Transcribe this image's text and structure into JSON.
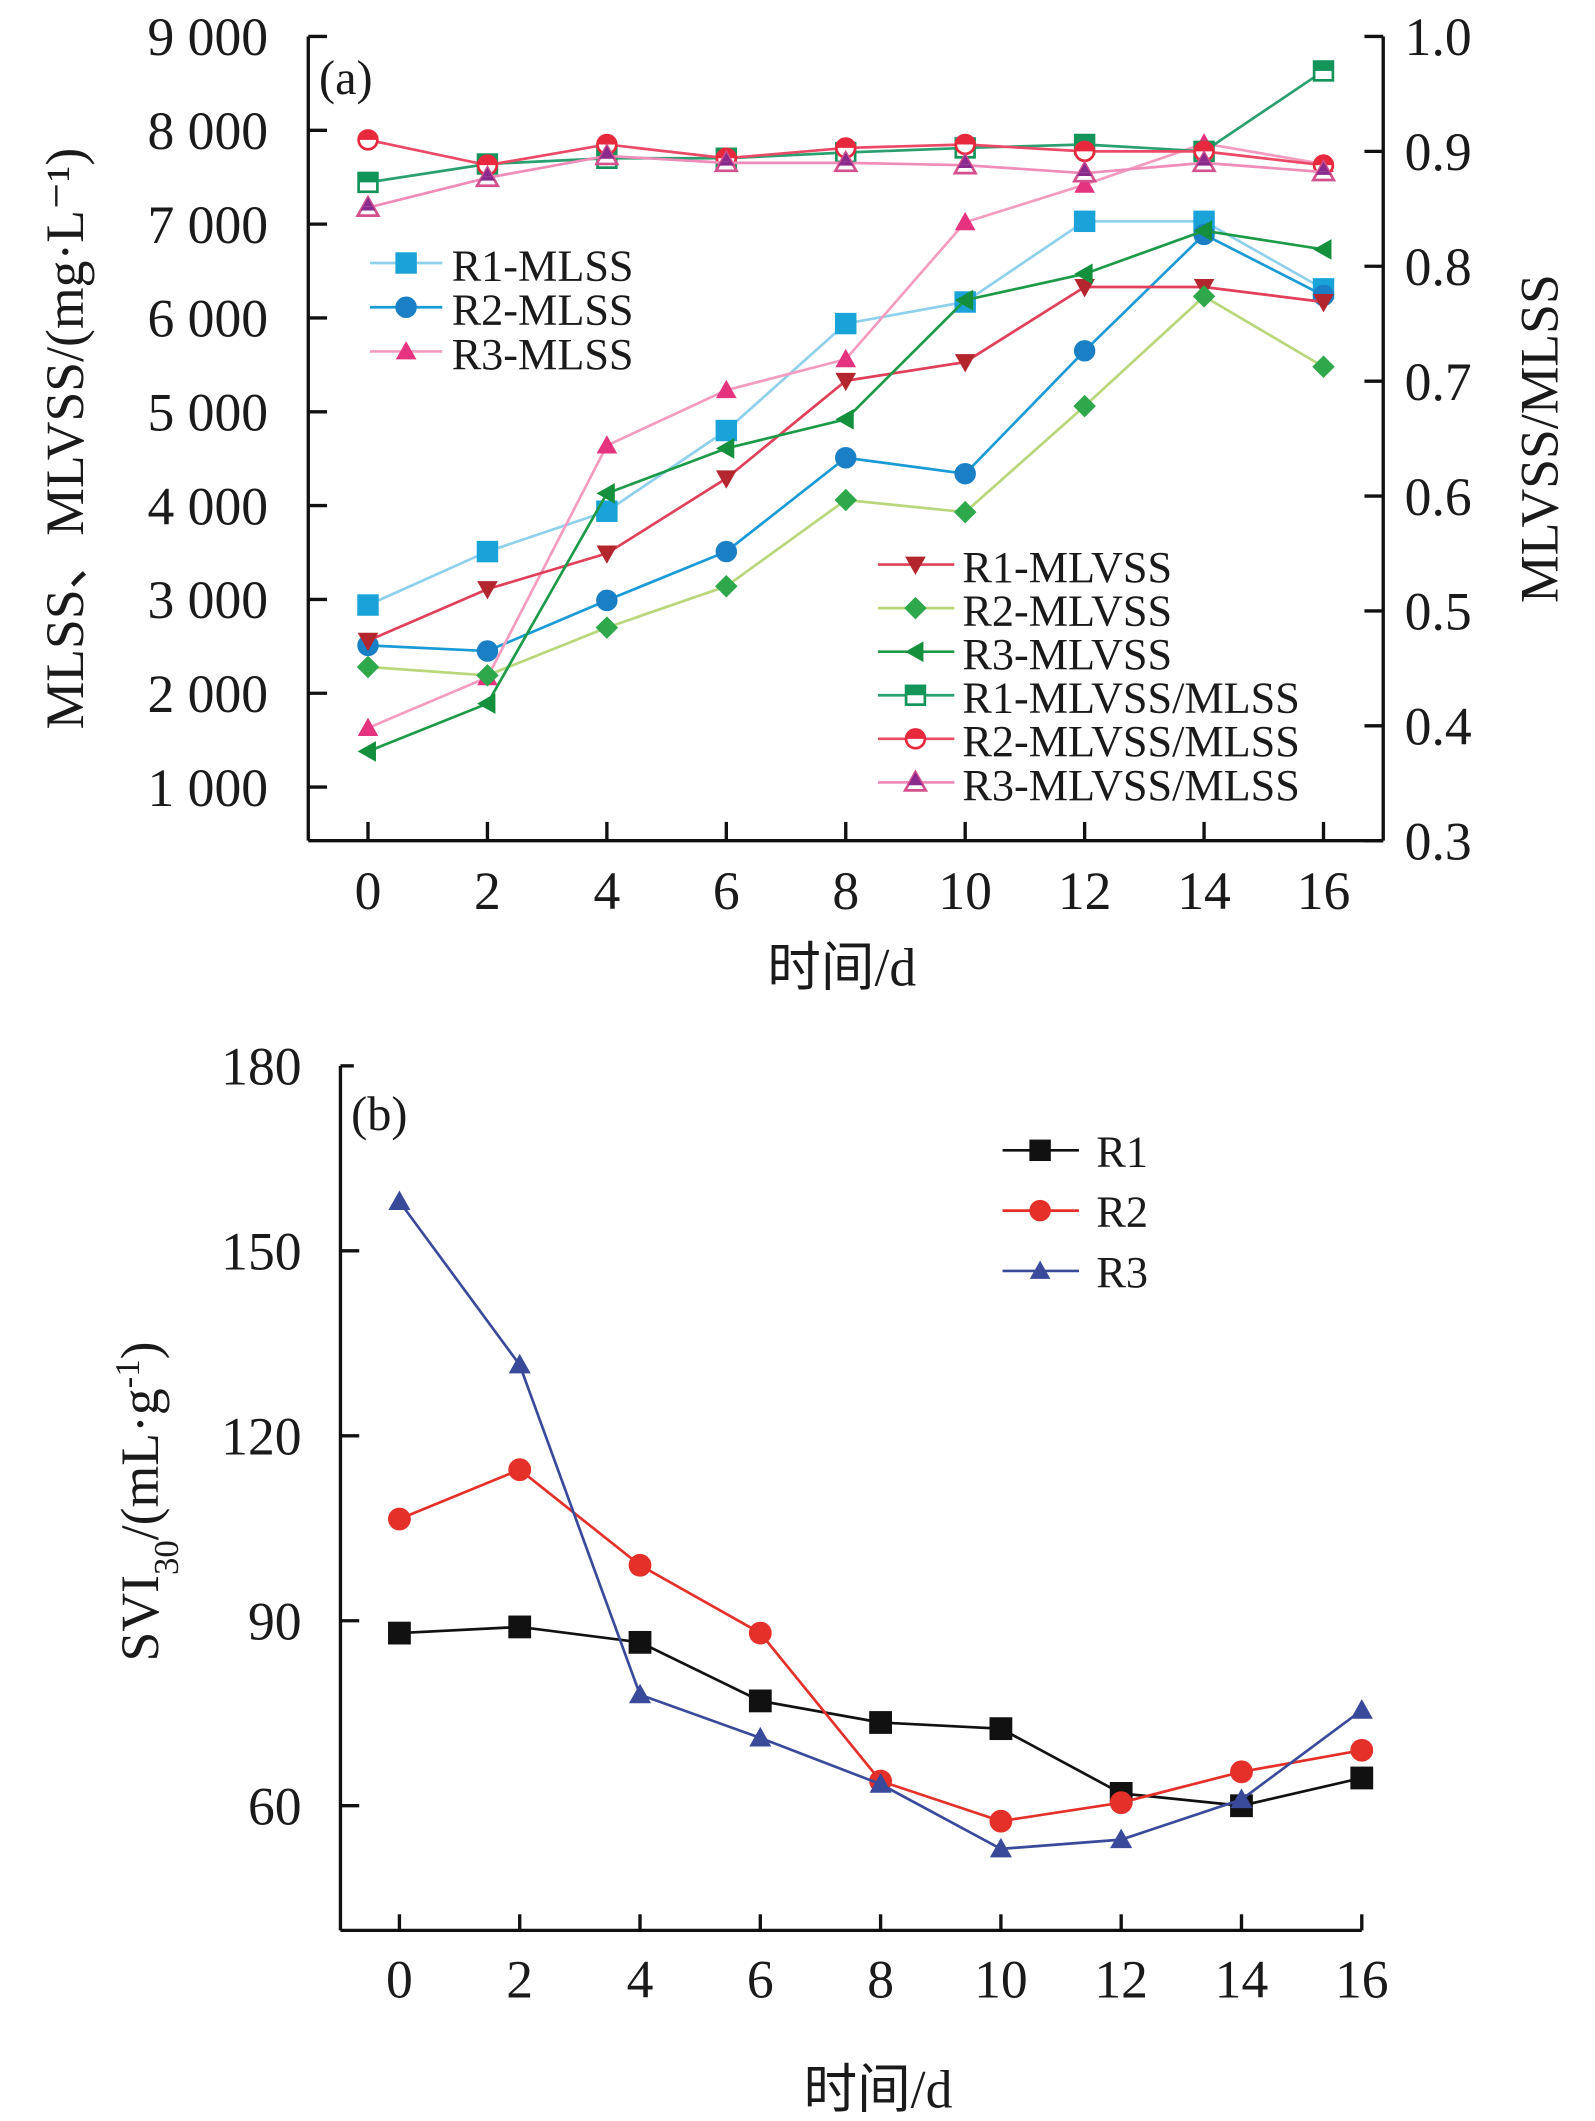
{
  "chart_data": [
    {
      "panel": "(a)",
      "type": "line",
      "title": "",
      "xlabel": "时间/d",
      "ylabel": "MLSS、MLVSS/(mg·L⁻¹)",
      "y2label": "MLVSS/MLSS",
      "x": [
        0,
        2,
        4,
        6,
        8,
        10,
        12,
        14,
        16
      ],
      "xticks": [
        "0",
        "2",
        "4",
        "6",
        "8",
        "10",
        "12",
        "14",
        "16"
      ],
      "xlim": [
        -1,
        17
      ],
      "ylim": [
        0,
        9000
      ],
      "yticks": [
        "1 000",
        "2 000",
        "3 000",
        "4 000",
        "5 000",
        "6 000",
        "7 000",
        "8 000",
        "9 000"
      ],
      "ytick_values": [
        1000,
        2000,
        3000,
        4000,
        5000,
        6000,
        7000,
        8000,
        9000
      ],
      "y2lim": [
        0.3,
        1.0
      ],
      "y2ticks": [
        "0.3",
        "0.4",
        "0.5",
        "0.6",
        "0.7",
        "0.8",
        "0.9",
        "1.0"
      ],
      "y2tick_values": [
        0.3,
        0.4,
        0.5,
        0.6,
        0.7,
        0.8,
        0.9,
        1.0
      ],
      "grid": false,
      "legend_groups": [
        {
          "placement": "upper-left",
          "entries": [
            "R1-MLSS",
            "R2-MLSS",
            "R3-MLSS"
          ]
        },
        {
          "placement": "lower-right",
          "entries": [
            "R1-MLVSS",
            "R2-MLVSS",
            "R3-MLVSS",
            "R1-MLVSS/MLSS",
            "R2-MLVSS/MLSS",
            "R3-MLVSS/MLSS"
          ]
        }
      ],
      "series": [
        {
          "name": "R1-MLSS",
          "axis": "left",
          "marker": "square",
          "color": "#1aa3d9",
          "line_color": "#8fd0ec",
          "values": [
            2940,
            3510,
            3940,
            4800,
            5940,
            6170,
            7030,
            7030,
            6310
          ]
        },
        {
          "name": "R2-MLSS",
          "axis": "left",
          "marker": "circle",
          "color": "#1a7fc4",
          "line_color": "#1a9ad6",
          "values": [
            2510,
            2450,
            2990,
            3510,
            4510,
            4340,
            5650,
            6890,
            6240
          ]
        },
        {
          "name": "R3-MLSS",
          "axis": "left",
          "marker": "triangle-up",
          "color": "#e6337f",
          "line_color": "#f39cc0",
          "values": [
            1630,
            2170,
            4640,
            5230,
            5560,
            7020,
            7420,
            7860,
            7640
          ]
        },
        {
          "name": "R1-MLVSS",
          "axis": "left",
          "marker": "triangle-down",
          "color": "#b3262e",
          "line_color": "#e0405a",
          "values": [
            2560,
            3110,
            3490,
            4290,
            5330,
            5530,
            6330,
            6330,
            6170
          ]
        },
        {
          "name": "R2-MLVSS",
          "axis": "left",
          "marker": "diamond",
          "color": "#2ea84a",
          "line_color": "#b9d67a",
          "values": [
            2280,
            2190,
            2700,
            3140,
            4060,
            3930,
            5060,
            6230,
            5480
          ]
        },
        {
          "name": "R3-MLVSS",
          "axis": "left",
          "marker": "triangle-left",
          "color": "#14903c",
          "line_color": "#1c9a48",
          "values": [
            1380,
            1890,
            4130,
            4610,
            4920,
            6190,
            6470,
            6930,
            6730
          ]
        },
        {
          "name": "R1-MLVSS/MLSS",
          "axis": "right",
          "marker": "square-half",
          "color": "#13955a",
          "line_color": "#2aa070",
          "values": [
            0.873,
            0.889,
            0.894,
            0.894,
            0.899,
            0.903,
            0.906,
            0.9,
            0.97
          ]
        },
        {
          "name": "R2-MLVSS/MLSS",
          "axis": "right",
          "marker": "circle-half",
          "color": "#e8283c",
          "line_color": "#ea4a66",
          "values": [
            0.91,
            0.888,
            0.906,
            0.894,
            0.903,
            0.906,
            0.9,
            0.9,
            0.888
          ]
        },
        {
          "name": "R3-MLVSS/MLSS",
          "axis": "right",
          "marker": "triangle-half",
          "color": "#8a2a8c",
          "line_color": "#f08cb8",
          "values": [
            0.851,
            0.877,
            0.896,
            0.89,
            0.89,
            0.888,
            0.881,
            0.89,
            0.882
          ]
        }
      ]
    },
    {
      "panel": "(b)",
      "type": "line",
      "title": "",
      "xlabel": "时间/d",
      "ylabel": "SVI30/(mL·g-1)",
      "ylabel_main": "SVI",
      "ylabel_sub": "30",
      "ylabel_rest": "/(mL·g",
      "ylabel_sup": "-1",
      "ylabel_close": ")",
      "x": [
        0,
        2,
        4,
        6,
        8,
        10,
        12,
        14,
        16
      ],
      "xticks": [
        "0",
        "2",
        "4",
        "6",
        "8",
        "10",
        "12",
        "14",
        "16"
      ],
      "xlim": [
        -1,
        17
      ],
      "ylim": [
        40,
        180
      ],
      "yticks": [
        "60",
        "90",
        "120",
        "150",
        "180"
      ],
      "ytick_values": [
        60,
        90,
        120,
        150,
        180
      ],
      "grid": false,
      "legend": {
        "placement": "top-right",
        "entries": [
          "R1",
          "R2",
          "R3"
        ]
      },
      "series": [
        {
          "name": "R1",
          "marker": "square",
          "color": "#111111",
          "values": [
            88,
            89,
            86.5,
            77,
            73.5,
            72.5,
            62,
            60,
            64.5
          ]
        },
        {
          "name": "R2",
          "marker": "circle",
          "color": "#e5302a",
          "values": [
            106.5,
            114.5,
            99,
            88,
            64,
            57.5,
            60.5,
            65.5,
            69
          ]
        },
        {
          "name": "R3",
          "marker": "triangle-up",
          "color": "#3a4a9a",
          "values": [
            158,
            131.5,
            78,
            71,
            63.5,
            53,
            54.5,
            61,
            75.5
          ]
        }
      ]
    }
  ]
}
